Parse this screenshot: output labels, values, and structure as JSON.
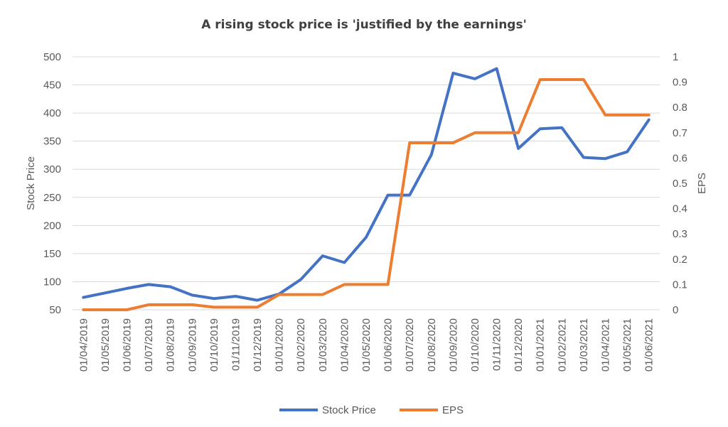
{
  "chart_data": {
    "type": "line",
    "title": "A rising stock price is 'justified by the earnings'",
    "xlabel": "",
    "categories": [
      "01/04/2019",
      "01/05/2019",
      "01/06/2019",
      "01/07/2019",
      "01/08/2019",
      "01/09/2019",
      "01/10/2019",
      "01/11/2019",
      "01/12/2019",
      "01/01/2020",
      "01/02/2020",
      "01/03/2020",
      "01/04/2020",
      "01/05/2020",
      "01/06/2020",
      "01/07/2020",
      "01/08/2020",
      "01/09/2020",
      "01/10/2020",
      "01/11/2020",
      "01/12/2020",
      "01/01/2021",
      "01/02/2021",
      "01/03/2021",
      "01/04/2021",
      "01/05/2021",
      "01/06/2021"
    ],
    "y_left": {
      "label": "Stock  Price",
      "min": 50,
      "max": 500,
      "ticks": [
        50,
        100,
        150,
        200,
        250,
        300,
        350,
        400,
        450,
        500
      ]
    },
    "y_right": {
      "label": "EPS",
      "min": 0,
      "max": 1,
      "ticks": [
        "0",
        "0.1",
        "0.2",
        "0.3",
        "0.4",
        "0.5",
        "0.6",
        "0.7",
        "0.8",
        "0.9",
        "1"
      ]
    },
    "grid": true,
    "legend_position": "bottom",
    "series": [
      {
        "name": "Stock Price",
        "axis": "left",
        "color": "#4472c4",
        "step": false,
        "values": [
          72,
          80,
          88,
          95,
          91,
          76,
          70,
          74,
          67,
          78,
          104,
          146,
          134,
          179,
          254,
          254,
          326,
          471,
          461,
          479,
          337,
          372,
          374,
          321,
          319,
          331,
          388
        ]
      },
      {
        "name": "EPS",
        "axis": "right",
        "color": "#ed7d31",
        "step": true,
        "values": [
          0,
          0,
          0,
          0.02,
          0.02,
          0.02,
          0.01,
          0.01,
          0.01,
          0.06,
          0.06,
          0.06,
          0.1,
          0.1,
          0.1,
          0.66,
          0.66,
          0.66,
          0.7,
          0.7,
          0.7,
          0.91,
          0.91,
          0.91,
          0.77,
          0.77,
          0.77
        ]
      }
    ]
  }
}
